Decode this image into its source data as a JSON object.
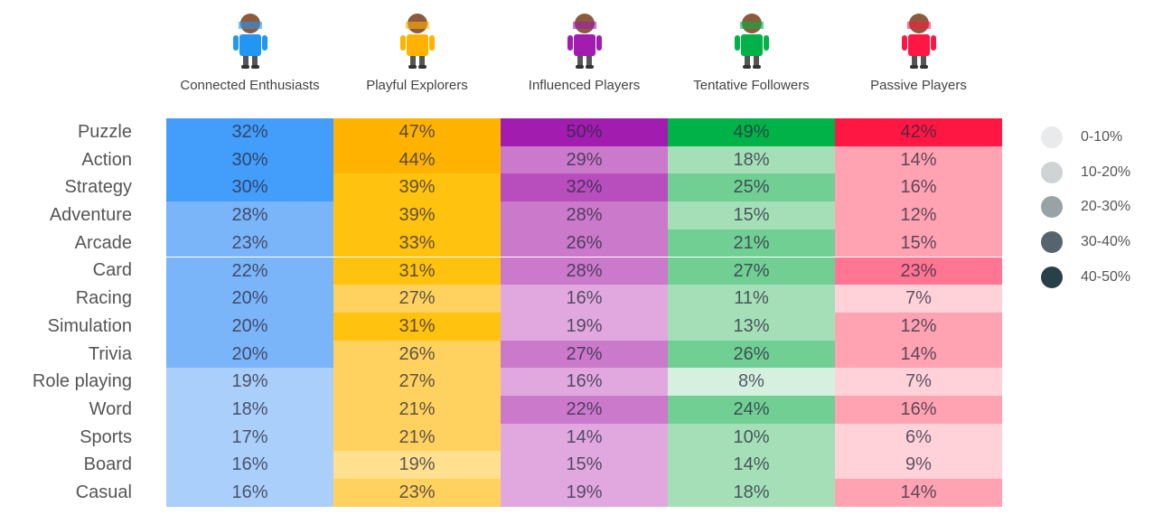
{
  "chart_data": {
    "type": "heatmap",
    "columns": [
      "Connected Enthusiasts",
      "Playful Explorers",
      "Influenced Players",
      "Tentative Followers",
      "Passive Players"
    ],
    "rows": [
      "Puzzle",
      "Action",
      "Strategy",
      "Adventure",
      "Arcade",
      "Card",
      "Racing",
      "Simulation",
      "Trivia",
      "Role playing",
      "Word",
      "Sports",
      "Board",
      "Casual"
    ],
    "values": [
      [
        32,
        47,
        50,
        49,
        42
      ],
      [
        30,
        44,
        29,
        18,
        14
      ],
      [
        30,
        39,
        32,
        25,
        16
      ],
      [
        28,
        39,
        28,
        15,
        12
      ],
      [
        23,
        33,
        26,
        21,
        15
      ],
      [
        22,
        31,
        28,
        27,
        23
      ],
      [
        20,
        27,
        16,
        11,
        7
      ],
      [
        20,
        31,
        19,
        13,
        12
      ],
      [
        20,
        26,
        27,
        26,
        14
      ],
      [
        19,
        27,
        16,
        8,
        7
      ],
      [
        18,
        21,
        22,
        24,
        16
      ],
      [
        17,
        21,
        14,
        10,
        6
      ],
      [
        16,
        19,
        15,
        14,
        9
      ],
      [
        16,
        23,
        19,
        18,
        14
      ]
    ],
    "unit": "%",
    "legend": {
      "position": "right",
      "entries": [
        "0-10%",
        "10-20%",
        "20-30%",
        "30-40%",
        "40-50%"
      ],
      "colors": [
        "#e9eaec",
        "#ced3d6",
        "#98a3a8",
        "#56656d",
        "#2a4049"
      ]
    },
    "column_colors": [
      {
        "base": "#2196f3",
        "shades": [
          "#d6e8fd",
          "#aacffa",
          "#7bb5f9",
          "#439dfa",
          "#1e88e5"
        ]
      },
      {
        "base": "#ffb300",
        "shades": [
          "#fff0c8",
          "#ffe08f",
          "#ffd15e",
          "#ffc20e",
          "#ffb300"
        ]
      },
      {
        "base": "#a21caf",
        "shades": [
          "#f0d6ef",
          "#e0a8df",
          "#cb79cb",
          "#b84dbe",
          "#a21caf"
        ]
      },
      {
        "base": "#00b247",
        "shades": [
          "#d6f0df",
          "#a5dfb8",
          "#72cf94",
          "#3fbf6c",
          "#00b247"
        ]
      },
      {
        "base": "#ff1744",
        "shades": [
          "#ffd1d9",
          "#ffa2b2",
          "#ff7592",
          "#ff4a6c",
          "#ff1744"
        ]
      }
    ]
  }
}
